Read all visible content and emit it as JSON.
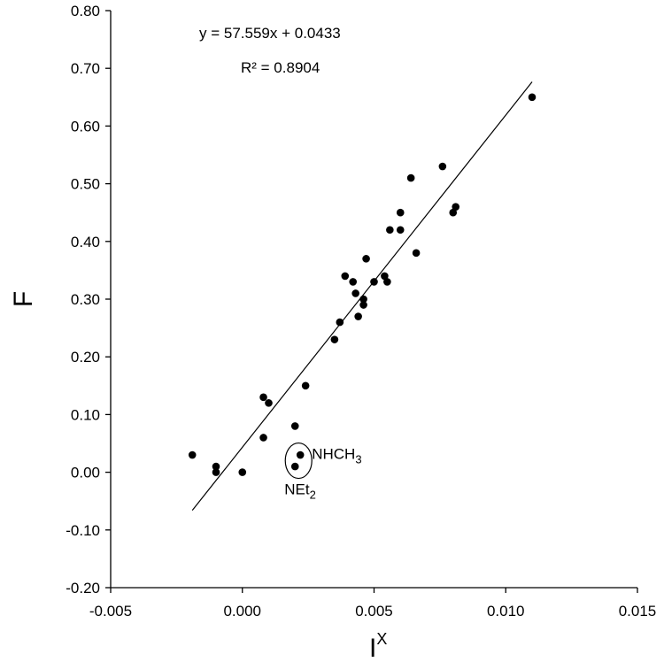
{
  "chart_data": {
    "type": "scatter",
    "title": "",
    "xlabel": "I",
    "xlabel_sup": "X",
    "ylabel": "F",
    "xlim": [
      -0.005,
      0.015
    ],
    "ylim": [
      -0.2,
      0.8
    ],
    "x_ticks": [
      -0.005,
      0.0,
      0.005,
      0.01,
      0.015
    ],
    "x_tick_labels": [
      "-0.005",
      "0.000",
      "0.005",
      "0.010",
      "0.015"
    ],
    "y_ticks": [
      -0.2,
      -0.1,
      0.0,
      0.1,
      0.2,
      0.3,
      0.4,
      0.5,
      0.6,
      0.7,
      0.8
    ],
    "y_tick_labels": [
      "-0.20",
      "-0.10",
      "0.00",
      "0.10",
      "0.20",
      "0.30",
      "0.40",
      "0.50",
      "0.60",
      "0.70",
      "0.80"
    ],
    "grid": false,
    "series": [
      {
        "points": [
          {
            "x": -0.0019,
            "y": 0.03
          },
          {
            "x": -0.001,
            "y": 0.01
          },
          {
            "x": -0.001,
            "y": 0.0
          },
          {
            "x": 0.0,
            "y": 0.0
          },
          {
            "x": 0.0008,
            "y": 0.06
          },
          {
            "x": 0.0008,
            "y": 0.13
          },
          {
            "x": 0.001,
            "y": 0.12
          },
          {
            "x": 0.002,
            "y": 0.08
          },
          {
            "x": 0.002,
            "y": 0.01
          },
          {
            "x": 0.0022,
            "y": 0.03
          },
          {
            "x": 0.0024,
            "y": 0.15
          },
          {
            "x": 0.0035,
            "y": 0.23
          },
          {
            "x": 0.0037,
            "y": 0.26
          },
          {
            "x": 0.0039,
            "y": 0.34
          },
          {
            "x": 0.0042,
            "y": 0.33
          },
          {
            "x": 0.0043,
            "y": 0.31
          },
          {
            "x": 0.0044,
            "y": 0.27
          },
          {
            "x": 0.0046,
            "y": 0.3
          },
          {
            "x": 0.0046,
            "y": 0.29
          },
          {
            "x": 0.0047,
            "y": 0.37
          },
          {
            "x": 0.005,
            "y": 0.33
          },
          {
            "x": 0.0054,
            "y": 0.34
          },
          {
            "x": 0.0055,
            "y": 0.33
          },
          {
            "x": 0.0056,
            "y": 0.42
          },
          {
            "x": 0.006,
            "y": 0.42
          },
          {
            "x": 0.006,
            "y": 0.45
          },
          {
            "x": 0.0064,
            "y": 0.51
          },
          {
            "x": 0.0066,
            "y": 0.38
          },
          {
            "x": 0.0076,
            "y": 0.53
          },
          {
            "x": 0.008,
            "y": 0.45
          },
          {
            "x": 0.0081,
            "y": 0.46
          },
          {
            "x": 0.011,
            "y": 0.65
          }
        ]
      }
    ],
    "trendline": {
      "slope": 57.559,
      "intercept": 0.0433,
      "x_range": [
        -0.0019,
        0.011
      ]
    },
    "annotations": {
      "equation": "y = 57.559x + 0.0433",
      "r_squared": "R² = 0.8904"
    },
    "circled_points": [
      {
        "x": 0.002,
        "y": 0.01
      },
      {
        "x": 0.0022,
        "y": 0.03
      }
    ],
    "point_labels": [
      {
        "text": "NHCH",
        "sub": "3"
      },
      {
        "text": "NEt",
        "sub": "2"
      }
    ]
  }
}
